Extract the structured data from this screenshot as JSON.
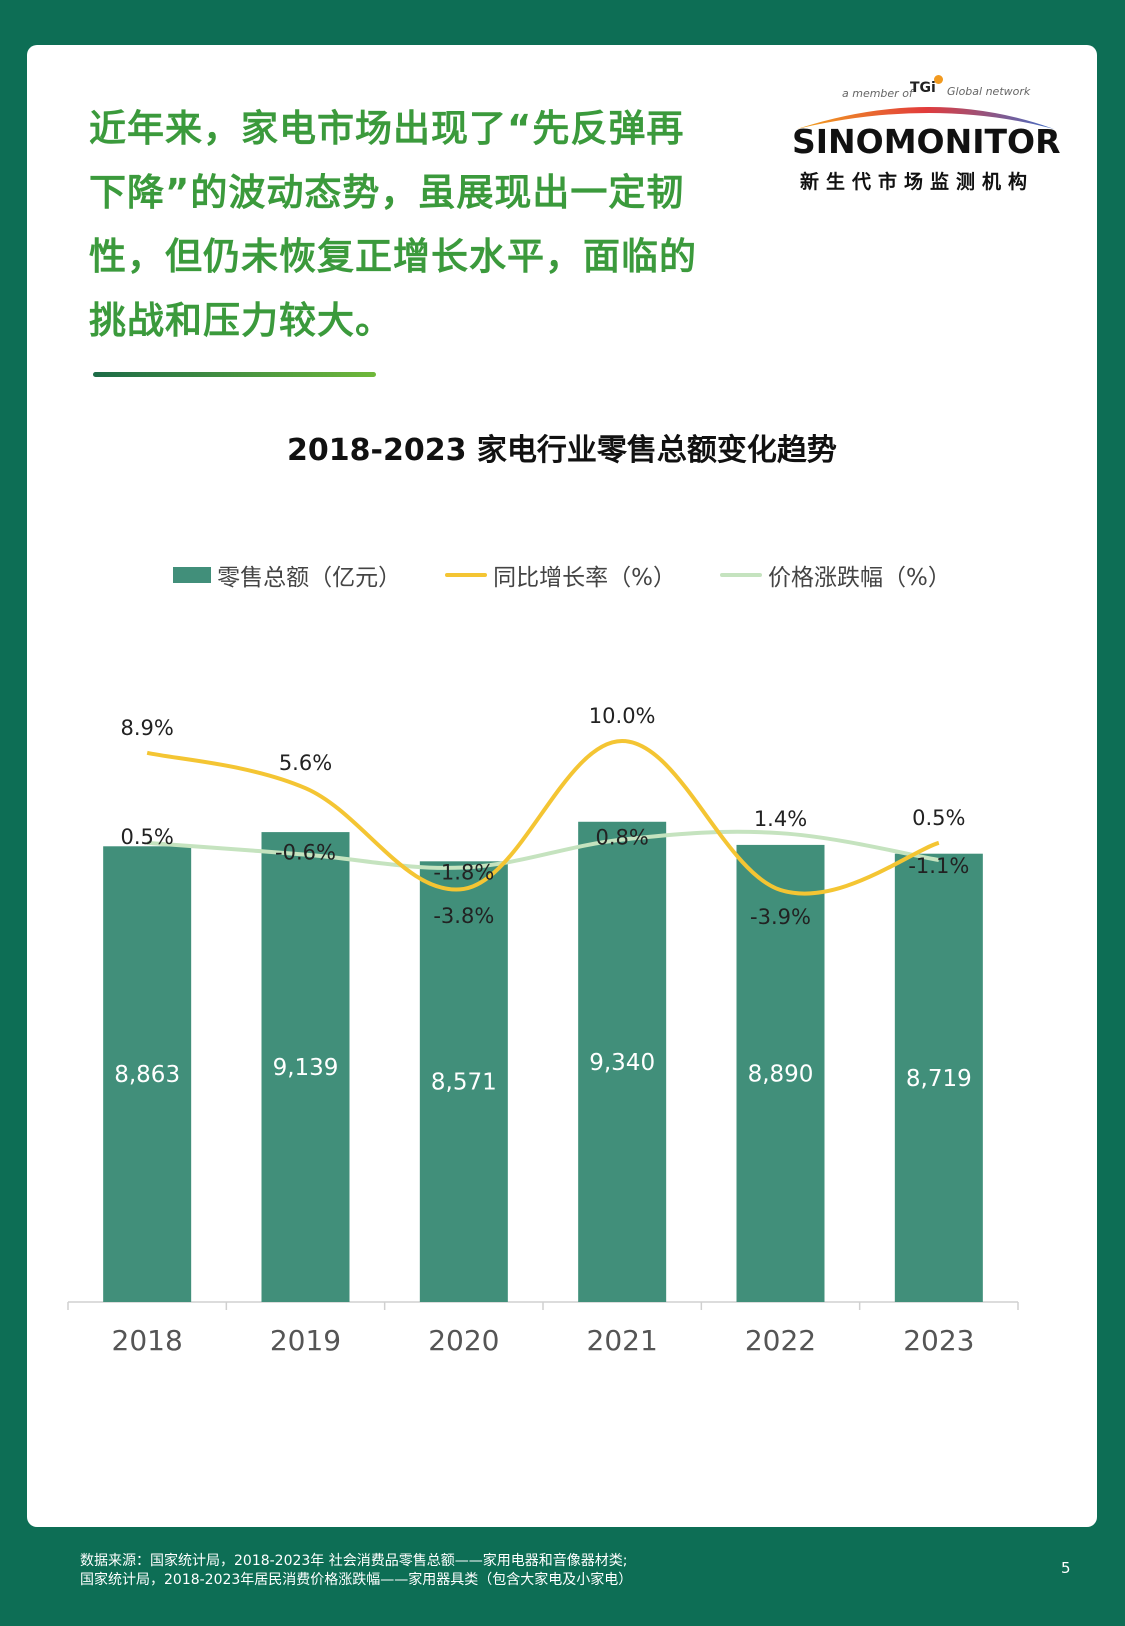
{
  "headline": {
    "lines": [
      "近年来，家电市场出现了“先反弹再",
      "下降”的波动态势，虽展现出一定韧",
      "性，但仍未恢复正增长水平，面临的",
      "挑战和压力较大。"
    ]
  },
  "logo": {
    "tagline": "a member of",
    "tgi": "TGi",
    "network": "Global network",
    "name": "SINOMONITOR",
    "subtitle": "新生代市场监测机构"
  },
  "colors": {
    "background": "#0d6e55",
    "bar": "#418f7a",
    "growth_line": "#f4c533",
    "price_line": "#c5e3bf",
    "headline": "#3b9a3c"
  },
  "chart_data": {
    "type": "bar",
    "title": "2018-2023 家电行业零售总额变化趋势",
    "categories": [
      "2018",
      "2019",
      "2020",
      "2021",
      "2022",
      "2023"
    ],
    "series": [
      {
        "name": "零售总额（亿元）",
        "type": "bar",
        "values": [
          8863,
          9139,
          8571,
          9340,
          8890,
          8719
        ],
        "labels": [
          "8,863",
          "9,139",
          "8,571",
          "9,340",
          "8,890",
          "8,719"
        ]
      },
      {
        "name": "同比增长率（%）",
        "type": "line",
        "values": [
          8.9,
          5.6,
          -3.8,
          10.0,
          -3.9,
          0.5
        ],
        "labels": [
          "8.9%",
          "5.6%",
          "-3.8%",
          "10.0%",
          "-3.9%",
          "0.5%"
        ]
      },
      {
        "name": "价格涨跌幅（%）",
        "type": "line",
        "values": [
          0.5,
          -0.6,
          -1.8,
          0.8,
          1.4,
          -1.1
        ],
        "labels": [
          "0.5%",
          "-0.6%",
          "-1.8%",
          "0.8%",
          "1.4%",
          "-1.1%"
        ]
      }
    ],
    "legend_position": "top",
    "grid": false
  },
  "footer": {
    "line1": "数据来源：国家统计局，2018-2023年 社会消费品零售总额——家用电器和音像器材类;",
    "line2": "国家统计局，2018-2023年居民消费价格涨跌幅——家用器具类（包含大家电及小家电）"
  },
  "page_number": "5"
}
